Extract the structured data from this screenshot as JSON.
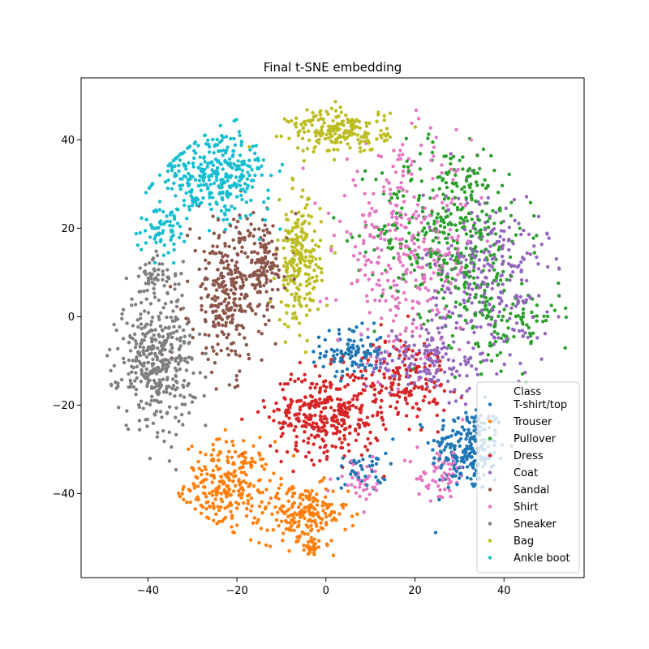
{
  "chart_data": {
    "type": "scatter",
    "title": "Final t-SNE embedding",
    "xlabel": "",
    "ylabel": "",
    "xlim": [
      -55,
      58
    ],
    "ylim": [
      -59,
      54
    ],
    "xticks": [
      -40,
      -20,
      0,
      20,
      40
    ],
    "yticks": [
      -40,
      -20,
      0,
      20,
      40
    ],
    "grid": false,
    "legend": {
      "title": "Class",
      "placement": "lower-right"
    },
    "series": [
      {
        "name": "T-shirt/top",
        "color": "#1f77b4",
        "clusters": [
          {
            "center": [
              32,
              -30
            ],
            "spread": [
              6,
              7
            ],
            "count": 230
          },
          {
            "center": [
              6,
              -8
            ],
            "spread": [
              5,
              4
            ],
            "count": 110
          },
          {
            "center": [
              8,
              -35
            ],
            "spread": [
              4,
              3
            ],
            "count": 40
          }
        ]
      },
      {
        "name": "Trouser",
        "color": "#ff7f0e",
        "clusters": [
          {
            "center": [
              -22,
              -38
            ],
            "spread": [
              7,
              7
            ],
            "count": 260
          },
          {
            "center": [
              -5,
              -45
            ],
            "spread": [
              7,
              5
            ],
            "count": 200
          },
          {
            "center": [
              -4,
              -52
            ],
            "spread": [
              2,
              1.5
            ],
            "count": 20
          }
        ]
      },
      {
        "name": "Pullover",
        "color": "#2ca02c",
        "clusters": [
          {
            "center": [
              28,
              20
            ],
            "spread": [
              12,
              14
            ],
            "count": 380
          },
          {
            "center": [
              40,
              0
            ],
            "spread": [
              9,
              8
            ],
            "count": 120
          }
        ]
      },
      {
        "name": "Dress",
        "color": "#d62728",
        "clusters": [
          {
            "center": [
              0,
              -22
            ],
            "spread": [
              9,
              7
            ],
            "count": 360
          },
          {
            "center": [
              18,
              -14
            ],
            "spread": [
              7,
              7
            ],
            "count": 140
          }
        ]
      },
      {
        "name": "Coat",
        "color": "#9467bd",
        "clusters": [
          {
            "center": [
              36,
              8
            ],
            "spread": [
              10,
              15
            ],
            "count": 300
          },
          {
            "center": [
              22,
              -10
            ],
            "spread": [
              9,
              5
            ],
            "count": 140
          }
        ]
      },
      {
        "name": "Sandal",
        "color": "#8c564b",
        "clusters": [
          {
            "center": [
              -22,
              5
            ],
            "spread": [
              6,
              12
            ],
            "count": 300
          },
          {
            "center": [
              -14,
              12
            ],
            "spread": [
              4,
              7
            ],
            "count": 110
          }
        ]
      },
      {
        "name": "Shirt",
        "color": "#e377c2",
        "clusters": [
          {
            "center": [
              18,
              15
            ],
            "spread": [
              11,
              16
            ],
            "count": 340
          },
          {
            "center": [
              26,
              -36
            ],
            "spread": [
              4,
              4
            ],
            "count": 60
          },
          {
            "center": [
              8,
              -37
            ],
            "spread": [
              4,
              3
            ],
            "count": 40
          }
        ]
      },
      {
        "name": "Sneaker",
        "color": "#7f7f7f",
        "clusters": [
          {
            "center": [
              -38,
              -10
            ],
            "spread": [
              6,
              10
            ],
            "count": 380
          },
          {
            "center": [
              -38,
              8
            ],
            "spread": [
              4,
              4
            ],
            "count": 60
          }
        ]
      },
      {
        "name": "Bag",
        "color": "#bcbd22",
        "clusters": [
          {
            "center": [
              3,
              42
            ],
            "spread": [
              8,
              3.5
            ],
            "count": 200
          },
          {
            "center": [
              -6,
              12
            ],
            "spread": [
              3.5,
              10
            ],
            "count": 220
          }
        ]
      },
      {
        "name": "Ankle boot",
        "color": "#17becf",
        "clusters": [
          {
            "center": [
              -25,
              32
            ],
            "spread": [
              9,
              7
            ],
            "count": 340
          },
          {
            "center": [
              -36,
              20
            ],
            "spread": [
              4,
              4
            ],
            "count": 60
          }
        ]
      }
    ]
  }
}
